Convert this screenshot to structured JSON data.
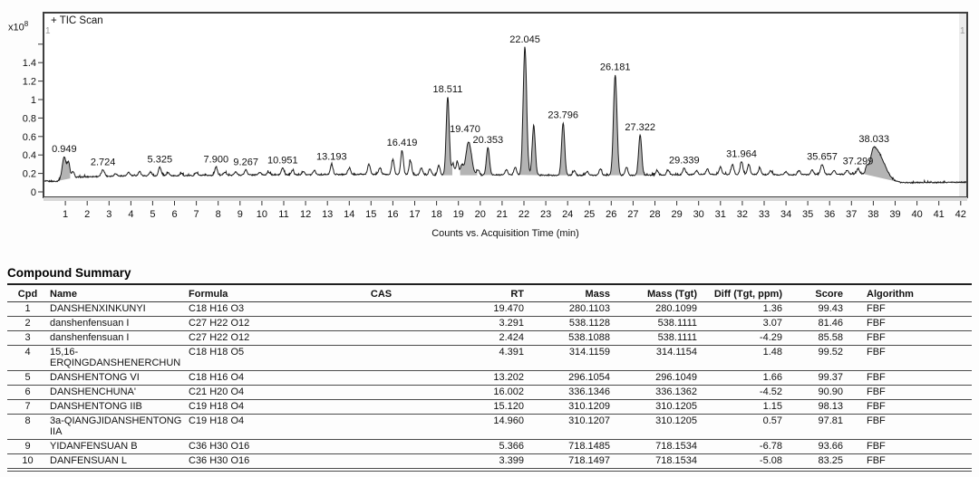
{
  "chart_data": {
    "type": "line",
    "title": "+ TIC Scan",
    "xlabel": "Counts vs. Acquisition Time (min)",
    "y_unit_base": "x10",
    "y_unit_exp": "8",
    "pane_marker_left": "1",
    "pane_marker_right": "1",
    "xlim": [
      0,
      42.3
    ],
    "ylim": [
      0,
      1.94
    ],
    "x_ticks": [
      1,
      2,
      3,
      4,
      5,
      6,
      7,
      8,
      9,
      10,
      11,
      12,
      13,
      14,
      15,
      16,
      17,
      18,
      19,
      20,
      21,
      22,
      23,
      24,
      25,
      26,
      27,
      28,
      29,
      30,
      31,
      32,
      33,
      34,
      35,
      36,
      37,
      38,
      39,
      40,
      41,
      42
    ],
    "y_ticks": [
      {
        "v": 0,
        "label": "0"
      },
      {
        "v": 0.2,
        "label": "0.2"
      },
      {
        "v": 0.4,
        "label": "0.4"
      },
      {
        "v": 0.6,
        "label": "0.6"
      },
      {
        "v": 0.8,
        "label": "0.8"
      },
      {
        "v": 1,
        "label": "1"
      },
      {
        "v": 1.2,
        "label": "1.2"
      },
      {
        "v": 1.4,
        "label": "1.4"
      },
      {
        "v": 1.6,
        "label": ""
      }
    ],
    "colors": {
      "line": "#1a1a1a",
      "fill": "#b4b4b4",
      "frame": "#3f3f3f",
      "band": "#d8d8d8",
      "right_strip": "#ececec"
    },
    "baseline": [
      [
        0,
        0.115
      ],
      [
        0.6,
        0.115
      ],
      [
        0.8,
        0.13
      ],
      [
        1.6,
        0.16
      ],
      [
        2.2,
        0.165
      ],
      [
        3,
        0.17
      ],
      [
        4,
        0.175
      ],
      [
        6,
        0.175
      ],
      [
        8,
        0.18
      ],
      [
        10,
        0.185
      ],
      [
        12,
        0.185
      ],
      [
        14,
        0.19
      ],
      [
        15,
        0.19
      ],
      [
        17,
        0.185
      ],
      [
        18.3,
        0.18
      ],
      [
        19.8,
        0.18
      ],
      [
        21,
        0.185
      ],
      [
        23,
        0.18
      ],
      [
        25,
        0.18
      ],
      [
        27,
        0.18
      ],
      [
        29,
        0.185
      ],
      [
        30,
        0.19
      ],
      [
        32,
        0.19
      ],
      [
        34,
        0.185
      ],
      [
        36,
        0.19
      ],
      [
        37.5,
        0.195
      ],
      [
        38.55,
        0.16
      ],
      [
        38.9,
        0.115
      ],
      [
        39.3,
        0.1
      ],
      [
        42.3,
        0.105
      ]
    ],
    "labeled_peaks": [
      {
        "rt": 0.949,
        "value": 0.38,
        "sigma": 0.09,
        "filled": true,
        "label": "0.949"
      },
      {
        "rt": 2.724,
        "value": 0.24,
        "sigma": 0.07,
        "label": "2.724"
      },
      {
        "rt": 5.325,
        "value": 0.27,
        "sigma": 0.06,
        "label": "5.325"
      },
      {
        "rt": 7.9,
        "value": 0.27,
        "sigma": 0.06,
        "label": "7.900"
      },
      {
        "rt": 9.267,
        "value": 0.24,
        "sigma": 0.06,
        "label": "9.267"
      },
      {
        "rt": 10.951,
        "value": 0.26,
        "sigma": 0.06,
        "label": "10.951"
      },
      {
        "rt": 13.193,
        "value": 0.3,
        "sigma": 0.06,
        "label": "13.193"
      },
      {
        "rt": 16.419,
        "value": 0.45,
        "sigma": 0.06,
        "label": "16.419"
      },
      {
        "rt": 18.511,
        "value": 1.03,
        "sigma": 0.07,
        "filled": true,
        "label": "18.511"
      },
      {
        "rt": 19.47,
        "value": 0.54,
        "sigma": 0.13,
        "filled": true,
        "label": "19.470",
        "label_dx": -4,
        "label_dy": -6
      },
      {
        "rt": 20.353,
        "value": 0.48,
        "sigma": 0.07,
        "filled": true,
        "label": "20.353"
      },
      {
        "rt": 22.045,
        "value": 1.57,
        "sigma": 0.08,
        "filled": true,
        "label": "22.045"
      },
      {
        "rt": 22.45,
        "value": 0.72,
        "sigma": 0.07,
        "filled": true,
        "label": ""
      },
      {
        "rt": 23.796,
        "value": 0.75,
        "sigma": 0.07,
        "filled": true,
        "label": "23.796"
      },
      {
        "rt": 26.181,
        "value": 1.27,
        "sigma": 0.08,
        "filled": true,
        "label": "26.181"
      },
      {
        "rt": 27.322,
        "value": 0.62,
        "sigma": 0.07,
        "filled": true,
        "label": "27.322"
      },
      {
        "rt": 29.339,
        "value": 0.26,
        "sigma": 0.06,
        "label": "29.339"
      },
      {
        "rt": 31.964,
        "value": 0.33,
        "sigma": 0.06,
        "label": "31.964"
      },
      {
        "rt": 35.657,
        "value": 0.3,
        "sigma": 0.07,
        "label": "35.657"
      },
      {
        "rt": 37.299,
        "value": 0.25,
        "sigma": 0.06,
        "label": "37.299"
      },
      {
        "rt": 38.033,
        "value": 0.49,
        "sigma": 0.15,
        "sigma_right": 0.38,
        "filled": true,
        "label": "38.033"
      }
    ],
    "minor_peaks": [
      [
        1.15,
        0.31
      ],
      [
        1.35,
        0.22
      ],
      [
        3.3,
        0.2
      ],
      [
        3.9,
        0.21
      ],
      [
        4.4,
        0.22
      ],
      [
        4.9,
        0.215
      ],
      [
        5.7,
        0.21
      ],
      [
        6.3,
        0.2
      ],
      [
        7,
        0.21
      ],
      [
        8.3,
        0.215
      ],
      [
        8.8,
        0.215
      ],
      [
        9.9,
        0.21
      ],
      [
        10.3,
        0.215
      ],
      [
        11.4,
        0.235
      ],
      [
        11.9,
        0.225
      ],
      [
        12.4,
        0.235
      ],
      [
        14,
        0.26
      ],
      [
        14.9,
        0.3
      ],
      [
        15.4,
        0.26
      ],
      [
        16,
        0.35
      ],
      [
        16.8,
        0.34
      ],
      [
        17.3,
        0.26
      ],
      [
        17.7,
        0.25
      ],
      [
        18.1,
        0.29
      ],
      [
        18.75,
        0.3
      ],
      [
        18.95,
        0.33
      ],
      [
        19.15,
        0.28
      ],
      [
        19.9,
        0.24
      ],
      [
        21.2,
        0.24
      ],
      [
        21.6,
        0.27
      ],
      [
        24.3,
        0.23
      ],
      [
        24.9,
        0.22
      ],
      [
        25.5,
        0.25
      ],
      [
        26.7,
        0.27
      ],
      [
        28.1,
        0.23
      ],
      [
        28.6,
        0.235
      ],
      [
        29.9,
        0.23
      ],
      [
        30.4,
        0.25
      ],
      [
        31,
        0.27
      ],
      [
        31.55,
        0.3
      ],
      [
        32.3,
        0.3
      ],
      [
        32.8,
        0.26
      ],
      [
        33.3,
        0.23
      ],
      [
        34,
        0.22
      ],
      [
        34.6,
        0.23
      ],
      [
        35.2,
        0.24
      ],
      [
        36.2,
        0.23
      ],
      [
        36.8,
        0.235
      ],
      [
        37.7,
        0.27
      ]
    ]
  },
  "table": {
    "title": "Compound Summary",
    "columns": [
      "Cpd",
      "Name",
      "Formula",
      "CAS",
      "RT",
      "Mass",
      "Mass (Tgt)",
      "Diff (Tgt, ppm)",
      "Score",
      "Algorithm"
    ],
    "rows": [
      {
        "cpd": "1",
        "name": "DANSHENXINKUNYI",
        "formula": "C18 H16 O3",
        "cas": "",
        "rt": "19.470",
        "mass": "280.1103",
        "mass_tgt": "280.1099",
        "diff": "1.36",
        "score": "99.43",
        "algorithm": "FBF"
      },
      {
        "cpd": "2",
        "name": "danshenfensuan I",
        "formula": "C27 H22 O12",
        "cas": "",
        "rt": "3.291",
        "mass": "538.1128",
        "mass_tgt": "538.1111",
        "diff": "3.07",
        "score": "81.46",
        "algorithm": "FBF"
      },
      {
        "cpd": "3",
        "name": "danshenfensuan I",
        "formula": "C27 H22 O12",
        "cas": "",
        "rt": "2.424",
        "mass": "538.1088",
        "mass_tgt": "538.1111",
        "diff": "-4.29",
        "score": "85.58",
        "algorithm": "FBF"
      },
      {
        "cpd": "4",
        "name": "15,16-ERQINGDANSHENERCHUN",
        "formula": "C18 H18 O5",
        "cas": "",
        "rt": "4.391",
        "mass": "314.1159",
        "mass_tgt": "314.1154",
        "diff": "1.48",
        "score": "99.52",
        "algorithm": "FBF"
      },
      {
        "cpd": "5",
        "name": "DANSHENTONG VI",
        "formula": "C18 H16 O4",
        "cas": "",
        "rt": "13.202",
        "mass": "296.1054",
        "mass_tgt": "296.1049",
        "diff": "1.66",
        "score": "99.37",
        "algorithm": "FBF"
      },
      {
        "cpd": "6",
        "name": "DANSHENCHUNA'",
        "formula": "C21 H20 O4",
        "cas": "",
        "rt": "16.002",
        "mass": "336.1346",
        "mass_tgt": "336.1362",
        "diff": "-4.52",
        "score": "90.90",
        "algorithm": "FBF"
      },
      {
        "cpd": "7",
        "name": "DANSHENTONG IIB",
        "formula": "C19 H18 O4",
        "cas": "",
        "rt": "15.120",
        "mass": "310.1209",
        "mass_tgt": "310.1205",
        "diff": "1.15",
        "score": "98.13",
        "algorithm": "FBF"
      },
      {
        "cpd": "8",
        "name": "3a-QIANGJIDANSHENTONG IIA",
        "formula": "C19 H18 O4",
        "cas": "",
        "rt": "14.960",
        "mass": "310.1207",
        "mass_tgt": "310.1205",
        "diff": "0.57",
        "score": "97.81",
        "algorithm": "FBF"
      },
      {
        "cpd": "9",
        "name": "YIDANFENSUAN B",
        "formula": "C36 H30 O16",
        "cas": "",
        "rt": "5.366",
        "mass": "718.1485",
        "mass_tgt": "718.1534",
        "diff": "-6.78",
        "score": "93.66",
        "algorithm": "FBF"
      },
      {
        "cpd": "10",
        "name": "DANFENSUAN L",
        "formula": "C36 H30 O16",
        "cas": "",
        "rt": "3.399",
        "mass": "718.1497",
        "mass_tgt": "718.1534",
        "diff": "-5.08",
        "score": "83.25",
        "algorithm": "FBF"
      }
    ]
  }
}
